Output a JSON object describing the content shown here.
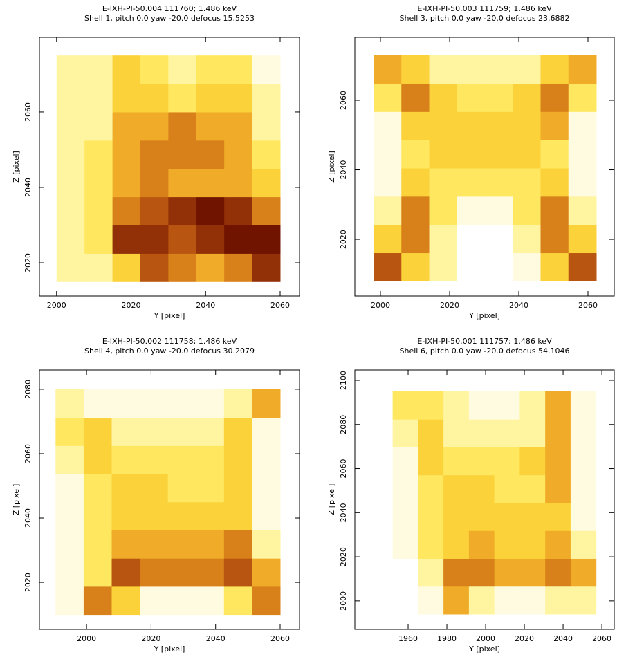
{
  "chart_data": [
    {
      "type": "heatmap",
      "title": "E-IXH-PI-50.004 111760; 1.486 keV",
      "subtitle": "Shell 1, pitch 0.0 yaw -20.0 defocus 15.5253",
      "xlabel": "Y [pixel]",
      "ylabel": "Z [pixel]",
      "xlim": [
        1995.4,
        2065.2
      ],
      "ylim": [
        2011.2,
        2079.8
      ],
      "xticks": [
        2000,
        2020,
        2040,
        2060
      ],
      "yticks": [
        2020,
        2040,
        2060
      ],
      "x_extent": [
        2000,
        2060
      ],
      "y_extent": [
        2015,
        2075
      ],
      "colormap": [
        "#ffffff",
        "#fffbe0",
        "#fff4a0",
        "#ffe860",
        "#fbd23a",
        "#f0ac28",
        "#d8801a",
        "#b85510",
        "#923008",
        "#701400"
      ],
      "z": [
        [
          2,
          2,
          4,
          7,
          6,
          5,
          6,
          8
        ],
        [
          2,
          3,
          8,
          8,
          7,
          8,
          9,
          9
        ],
        [
          2,
          3,
          6,
          7,
          8,
          9,
          8,
          6
        ],
        [
          2,
          3,
          5,
          6,
          5,
          5,
          5,
          4
        ],
        [
          2,
          3,
          5,
          6,
          6,
          6,
          5,
          3
        ],
        [
          2,
          2,
          5,
          5,
          6,
          5,
          5,
          2
        ],
        [
          2,
          2,
          4,
          4,
          3,
          4,
          4,
          2
        ],
        [
          2,
          2,
          4,
          3,
          2,
          3,
          3,
          1
        ]
      ]
    },
    {
      "type": "heatmap",
      "title": "E-IXH-PI-50.003 111759; 1.486 keV",
      "subtitle": "Shell 3, pitch 0.0 yaw -20.0 defocus 23.6882",
      "xlabel": "Y [pixel]",
      "ylabel": "Z [pixel]",
      "xlim": [
        1992.6,
        2067.6
      ],
      "ylim": [
        2003.7,
        2078.1
      ],
      "xticks": [
        2000,
        2020,
        2040,
        2060
      ],
      "yticks": [
        2020,
        2040,
        2060
      ],
      "x_extent": [
        1998,
        2062.4
      ],
      "y_extent": [
        2008,
        2073
      ],
      "colormap": [
        "#ffffff",
        "#fffbe0",
        "#fff4a0",
        "#ffe860",
        "#fbd23a",
        "#f0ac28",
        "#d8801a",
        "#b85510",
        "#923008",
        "#701400"
      ],
      "z": [
        [
          7,
          4,
          2,
          0,
          0,
          1,
          4,
          7
        ],
        [
          4,
          6,
          2,
          0,
          0,
          2,
          6,
          4
        ],
        [
          2,
          6,
          3,
          1,
          1,
          3,
          6,
          2
        ],
        [
          1,
          4,
          3,
          3,
          3,
          3,
          4,
          1
        ],
        [
          1,
          3,
          4,
          4,
          4,
          4,
          3,
          1
        ],
        [
          1,
          4,
          4,
          4,
          4,
          4,
          5,
          1
        ],
        [
          3,
          6,
          4,
          3,
          3,
          4,
          6,
          3
        ],
        [
          5,
          4,
          2,
          2,
          2,
          2,
          4,
          5
        ]
      ]
    },
    {
      "type": "heatmap",
      "title": "E-IXH-PI-50.002 111758; 1.486 keV",
      "subtitle": "Shell 4, pitch 0.0 yaw -20.0 defocus 30.2079",
      "xlabel": "Y [pixel]",
      "ylabel": "Z [pixel]",
      "xlim": [
        1985.4,
        2066
      ],
      "ylim": [
        2005.4,
        2086
      ],
      "xticks": [
        2000,
        2020,
        2040,
        2060
      ],
      "yticks": [
        2020,
        2040,
        2060,
        2080
      ],
      "x_extent": [
        1990.4,
        2060
      ],
      "y_extent": [
        2010,
        2080
      ],
      "colormap": [
        "#ffffff",
        "#fffbe0",
        "#fff4a0",
        "#ffe860",
        "#fbd23a",
        "#f0ac28",
        "#d8801a",
        "#b85510",
        "#923008",
        "#701400"
      ],
      "z": [
        [
          1,
          6,
          4,
          1,
          1,
          1,
          3,
          6
        ],
        [
          1,
          3,
          7,
          6,
          6,
          6,
          7,
          5
        ],
        [
          1,
          3,
          5,
          5,
          5,
          5,
          6,
          2
        ],
        [
          1,
          3,
          4,
          4,
          4,
          4,
          4,
          1
        ],
        [
          1,
          3,
          4,
          4,
          3,
          3,
          4,
          1
        ],
        [
          2,
          4,
          3,
          3,
          3,
          3,
          4,
          1
        ],
        [
          3,
          4,
          2,
          2,
          2,
          2,
          4,
          1
        ],
        [
          2,
          1,
          1,
          1,
          1,
          1,
          2,
          5
        ]
      ]
    },
    {
      "type": "heatmap",
      "title": "E-IXH-PI-50.001 111757; 1.486 keV",
      "subtitle": "Shell 6, pitch 0.0 yaw -20.0 defocus 54.1046",
      "xlabel": "Y [pixel]",
      "ylabel": "Z [pixel]",
      "xlim": [
        1932.5,
        2066.4
      ],
      "ylim": [
        1987.1,
        2104.7
      ],
      "xticks": [
        1960,
        1980,
        2000,
        2020,
        2040,
        2060
      ],
      "yticks": [
        2000,
        2020,
        2040,
        2060,
        2080,
        2100
      ],
      "x_extent": [
        1952,
        2057
      ],
      "y_extent": [
        1994,
        2095
      ],
      "colormap": [
        "#ffffff",
        "#fffbe0",
        "#fff4a0",
        "#ffe860",
        "#fbd23a",
        "#f0ac28",
        "#d8801a",
        "#b85510",
        "#923008",
        "#701400"
      ],
      "z": [
        [
          0,
          1,
          5,
          2,
          1,
          1,
          2,
          2
        ],
        [
          0,
          2,
          6,
          6,
          5,
          5,
          6,
          5
        ],
        [
          1,
          3,
          4,
          5,
          4,
          4,
          5,
          2
        ],
        [
          1,
          3,
          4,
          4,
          4,
          4,
          4,
          1
        ],
        [
          1,
          3,
          4,
          4,
          3,
          3,
          5,
          1
        ],
        [
          1,
          4,
          3,
          3,
          3,
          4,
          5,
          1
        ],
        [
          2,
          4,
          2,
          2,
          2,
          2,
          5,
          1
        ],
        [
          3,
          3,
          2,
          1,
          1,
          2,
          5,
          1
        ]
      ]
    }
  ]
}
